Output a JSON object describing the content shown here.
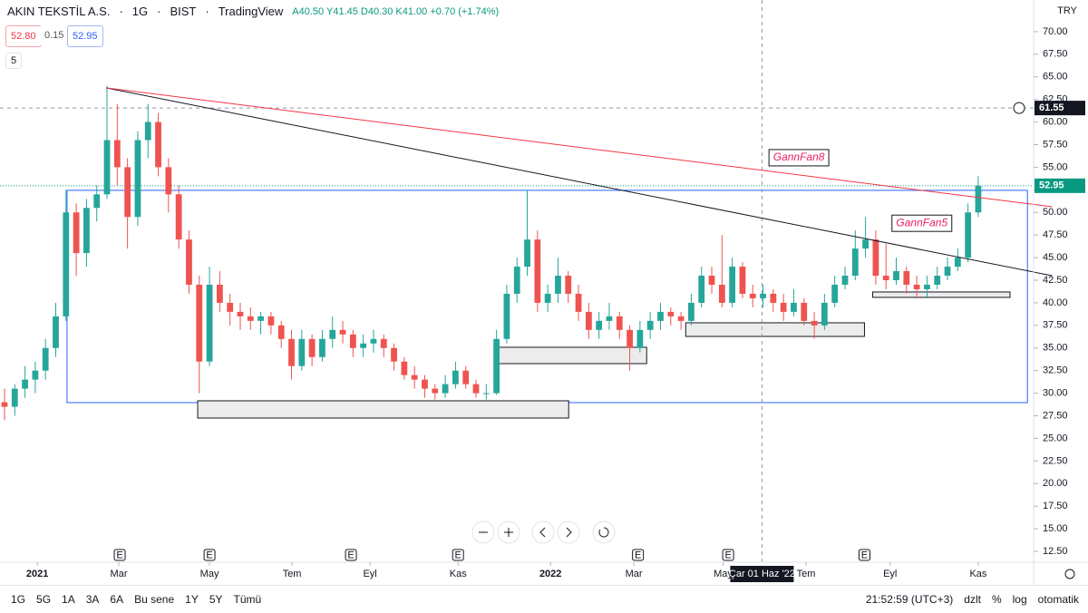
{
  "header": {
    "symbol": "AKIN TEKSTİL A.S.",
    "interval": "1G",
    "exchange": "BIST",
    "platform": "TradingView",
    "ohlc": "A40.50 Y41.45 D40.30 K41.00 +0.70 (+1.74%)",
    "bid": "52.80",
    "spread": "0.15",
    "ask": "52.95",
    "indicator_count": "5",
    "currency": "TRY"
  },
  "toolbar": {
    "ranges": [
      "1G",
      "5G",
      "1A",
      "3A",
      "6A",
      "Bu sene",
      "1Y",
      "5Y",
      "Tümü"
    ],
    "time": "21:52:59 (UTC+3)",
    "options": [
      "dzlt",
      "%",
      "log",
      "otomatik"
    ]
  },
  "chart_data": {
    "type": "candlestick",
    "up_color": "#26a69a",
    "down_color": "#ef5350",
    "xlim": [
      -0.44,
      100.4
    ],
    "ylim": [
      11.3,
      73.5
    ],
    "xticks": [
      {
        "value": 3.2,
        "label": "2021"
      },
      {
        "value": 11.15,
        "label": "Mar"
      },
      {
        "value": 20.0,
        "label": "May"
      },
      {
        "value": 28.05,
        "label": "Tem"
      },
      {
        "value": 35.66,
        "label": "Eyl"
      },
      {
        "value": 44.25,
        "label": "Kas"
      },
      {
        "value": 53.27,
        "label": "2022"
      },
      {
        "value": 61.4,
        "label": "Mar"
      },
      {
        "value": 70.1,
        "label": "May"
      },
      {
        "value": 78.2,
        "label": "Tem"
      },
      {
        "value": 86.4,
        "label": "Eyl"
      },
      {
        "value": 95.0,
        "label": "Kas"
      }
    ],
    "yticks": [
      {
        "value": 12.5,
        "label": "12.50"
      },
      {
        "value": 15,
        "label": "15.00"
      },
      {
        "value": 17.5,
        "label": "17.50"
      },
      {
        "value": 20,
        "label": "20.00"
      },
      {
        "value": 22.5,
        "label": "22.50"
      },
      {
        "value": 25,
        "label": "25.00"
      },
      {
        "value": 27.5,
        "label": "27.50"
      },
      {
        "value": 30,
        "label": "30.00"
      },
      {
        "value": 32.5,
        "label": "32.50"
      },
      {
        "value": 35,
        "label": "35.00"
      },
      {
        "value": 37.5,
        "label": "37.50"
      },
      {
        "value": 40,
        "label": "40.00"
      },
      {
        "value": 42.5,
        "label": "42.50"
      },
      {
        "value": 45,
        "label": "45.00"
      },
      {
        "value": 47.5,
        "label": "47.50"
      },
      {
        "value": 50,
        "label": "50.00"
      },
      {
        "value": 52.5,
        "label": "52.50"
      },
      {
        "value": 55,
        "label": "55.00"
      },
      {
        "value": 57.5,
        "label": "57.50"
      },
      {
        "value": 60,
        "label": "60.00"
      },
      {
        "value": 62.5,
        "label": "62.50"
      },
      {
        "value": 65,
        "label": "65.00"
      },
      {
        "value": 67.5,
        "label": "67.50"
      },
      {
        "value": 70,
        "label": "70.00"
      }
    ],
    "ohlc": [
      [
        29,
        30.5,
        27,
        28.5
      ],
      [
        28.5,
        31,
        27.5,
        30.5
      ],
      [
        30.5,
        33,
        29.5,
        31.5
      ],
      [
        31.5,
        33.5,
        30,
        32.5
      ],
      [
        32.5,
        36,
        31.5,
        35
      ],
      [
        35,
        40,
        34,
        38.5
      ],
      [
        38.5,
        52.5,
        38,
        50
      ],
      [
        50,
        51,
        43,
        45.5
      ],
      [
        45.5,
        51.5,
        44,
        50.5
      ],
      [
        50.5,
        53,
        49,
        52
      ],
      [
        52,
        64,
        51.5,
        58
      ],
      [
        58,
        62,
        53,
        55
      ],
      [
        55,
        56,
        46,
        49.5
      ],
      [
        49.5,
        59,
        48.5,
        58
      ],
      [
        58,
        62,
        56,
        60
      ],
      [
        60,
        61,
        54,
        55
      ],
      [
        55,
        56,
        50,
        52
      ],
      [
        52,
        53,
        46,
        47
      ],
      [
        47,
        48,
        41,
        42
      ],
      [
        42,
        43,
        30,
        33.5
      ],
      [
        33.5,
        44,
        33,
        42
      ],
      [
        42,
        43.5,
        39,
        40
      ],
      [
        40,
        41,
        37.5,
        39
      ],
      [
        39,
        40,
        37,
        38.5
      ],
      [
        38.5,
        39.5,
        37,
        38
      ],
      [
        38,
        39,
        36.5,
        38.5
      ],
      [
        38.5,
        39,
        36.5,
        37.5
      ],
      [
        37.5,
        38,
        35,
        36
      ],
      [
        36,
        37,
        31.5,
        33
      ],
      [
        33,
        37,
        32.5,
        36
      ],
      [
        36,
        36.5,
        33,
        34
      ],
      [
        34,
        37,
        33.5,
        36
      ],
      [
        36,
        38.5,
        35,
        37
      ],
      [
        37,
        38,
        35.5,
        36.5
      ],
      [
        36.5,
        37,
        34,
        35
      ],
      [
        35,
        36.5,
        34,
        35.5
      ],
      [
        35.5,
        37,
        34.5,
        36
      ],
      [
        36,
        36.5,
        34,
        35
      ],
      [
        35,
        35.5,
        32.5,
        33.5
      ],
      [
        33.5,
        34,
        31.5,
        32
      ],
      [
        32,
        33,
        30.5,
        31.5
      ],
      [
        31.5,
        32,
        29.5,
        30.5
      ],
      [
        30.5,
        31,
        29.3,
        30
      ],
      [
        30,
        32,
        29.5,
        31
      ],
      [
        31,
        33.5,
        30.5,
        32.5
      ],
      [
        32.5,
        33,
        30.5,
        31
      ],
      [
        31,
        31.5,
        29.5,
        30
      ],
      [
        30,
        31,
        29.3,
        30
      ],
      [
        30,
        37,
        29.8,
        36
      ],
      [
        36,
        42,
        35.5,
        41
      ],
      [
        41,
        45,
        40,
        44
      ],
      [
        44,
        52.5,
        43,
        47
      ],
      [
        47,
        48,
        39,
        40
      ],
      [
        40,
        42,
        39,
        41
      ],
      [
        41,
        45,
        40,
        43
      ],
      [
        43,
        43.5,
        40,
        41
      ],
      [
        41,
        42,
        38,
        39
      ],
      [
        39,
        40,
        36,
        37
      ],
      [
        37,
        39,
        36,
        38
      ],
      [
        38,
        40,
        37,
        38.5
      ],
      [
        38.5,
        39,
        36,
        37
      ],
      [
        37,
        37.5,
        32.5,
        35
      ],
      [
        35,
        38,
        34.5,
        37
      ],
      [
        37,
        39,
        36,
        38
      ],
      [
        38,
        40,
        37,
        39
      ],
      [
        39,
        39.5,
        37.5,
        38.5
      ],
      [
        38.5,
        39,
        37,
        38
      ],
      [
        38,
        41,
        37.5,
        40
      ],
      [
        40,
        44,
        39.5,
        43
      ],
      [
        43,
        44,
        41,
        42
      ],
      [
        42,
        47.5,
        39.5,
        40
      ],
      [
        40,
        45,
        39.5,
        44
      ],
      [
        44,
        44.5,
        40.5,
        41
      ],
      [
        41,
        42,
        39.5,
        40.5
      ],
      [
        40.5,
        42,
        39.5,
        41
      ],
      [
        41,
        41.5,
        39,
        40
      ],
      [
        40,
        41,
        38,
        39
      ],
      [
        39,
        41.5,
        38.5,
        40
      ],
      [
        40,
        40.5,
        37.5,
        38
      ],
      [
        38,
        39,
        36,
        37.5
      ],
      [
        37.5,
        41,
        37,
        40
      ],
      [
        40,
        43,
        39.5,
        42
      ],
      [
        42,
        44,
        41.5,
        43
      ],
      [
        43,
        48,
        42.5,
        46
      ],
      [
        46,
        49.5,
        45,
        47
      ],
      [
        47,
        48,
        42,
        43
      ],
      [
        43,
        46.5,
        41.5,
        42.5
      ],
      [
        42.5,
        45,
        42,
        43.5
      ],
      [
        43.5,
        44,
        41,
        42
      ],
      [
        42,
        43,
        40.5,
        41.5
      ],
      [
        41.5,
        43,
        40.5,
        42
      ],
      [
        42,
        44,
        41.5,
        43
      ],
      [
        43,
        45,
        42.5,
        44
      ],
      [
        44,
        46,
        43.5,
        45
      ],
      [
        45,
        51,
        44.5,
        50
      ],
      [
        50,
        54,
        49.5,
        52.95
      ]
    ],
    "last_price": 52.95,
    "last_color": "#089981",
    "crosshair": {
      "x": 73.9,
      "x_label": "Çar 01 Haz '22",
      "y": 61.55
    },
    "events": [
      {
        "x": 11.24,
        "label": "E"
      },
      {
        "x": 20.0,
        "label": "E"
      },
      {
        "x": 33.8,
        "label": "E"
      },
      {
        "x": 44.25,
        "label": "E"
      },
      {
        "x": 61.8,
        "label": "E"
      },
      {
        "x": 70.6,
        "label": "E"
      },
      {
        "x": 83.9,
        "label": "E"
      }
    ],
    "trend_lines": [
      {
        "x": [
          9.91,
          102.2
        ],
        "y": [
          63.78,
          43.0
        ],
        "color": "#131722"
      },
      {
        "x": [
          9.91,
          102.2
        ],
        "y": [
          63.78,
          50.63
        ],
        "color": "#f23645"
      }
    ],
    "range_box": {
      "x": [
        6.1,
        99.8
      ],
      "y": [
        28.96,
        52.44
      ],
      "color": "#2962ff"
    },
    "zones": [
      {
        "x": [
          18.85,
          55.04
        ],
        "y": [
          27.25,
          29.16
        ]
      },
      {
        "x": [
          47.8,
          62.65
        ],
        "y": [
          33.27,
          35.08
        ]
      },
      {
        "x": [
          66.46,
          83.9
        ],
        "y": [
          36.28,
          37.79
        ]
      },
      {
        "x": [
          84.7,
          98.1
        ],
        "y": [
          40.6,
          41.2
        ]
      }
    ],
    "annotations": [
      {
        "text": "GannFan8",
        "x": 77.5,
        "y": 56.05
      },
      {
        "text": "GannFan5",
        "x": 89.5,
        "y": 48.8
      }
    ]
  }
}
